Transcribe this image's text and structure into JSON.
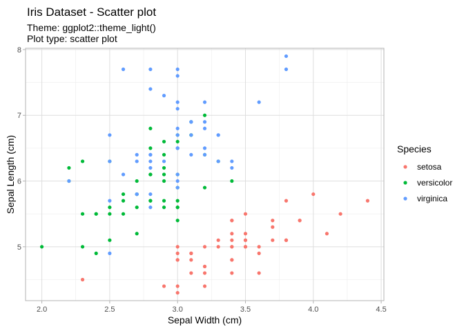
{
  "chart_data": {
    "type": "scatter",
    "title": "Iris Dataset - Scatter plot",
    "subtitle": [
      "Theme: ggplot2::theme_light()",
      "Plot type: scatter plot"
    ],
    "xlabel": "Sepal Width (cm)",
    "ylabel": "Sepal Length (cm)",
    "xlim": [
      1.88,
      4.52
    ],
    "ylim": [
      4.18,
      8.02
    ],
    "xticks": [
      2.0,
      2.5,
      3.0,
      3.5,
      4.0,
      4.5
    ],
    "xtick_labels": [
      "2.0",
      "2.5",
      "3.0",
      "3.5",
      "4.0",
      "4.5"
    ],
    "yticks": [
      5,
      6,
      7,
      8
    ],
    "ytick_labels": [
      "5",
      "6",
      "7",
      "8"
    ],
    "grid": true,
    "legend": {
      "title": "Species",
      "position": "right"
    },
    "series": [
      {
        "name": "setosa",
        "color": "#F8766D",
        "points": [
          [
            3.5,
            5.1
          ],
          [
            3.0,
            4.9
          ],
          [
            3.2,
            4.7
          ],
          [
            3.1,
            4.6
          ],
          [
            3.6,
            5.0
          ],
          [
            3.9,
            5.4
          ],
          [
            3.4,
            4.6
          ],
          [
            3.4,
            5.0
          ],
          [
            2.9,
            4.4
          ],
          [
            3.1,
            4.9
          ],
          [
            3.7,
            5.4
          ],
          [
            3.4,
            4.8
          ],
          [
            3.0,
            4.8
          ],
          [
            3.0,
            4.3
          ],
          [
            4.0,
            5.8
          ],
          [
            4.4,
            5.7
          ],
          [
            3.9,
            5.4
          ],
          [
            3.5,
            5.1
          ],
          [
            3.8,
            5.7
          ],
          [
            3.8,
            5.1
          ],
          [
            3.4,
            5.4
          ],
          [
            3.7,
            5.1
          ],
          [
            3.6,
            4.6
          ],
          [
            3.3,
            5.1
          ],
          [
            3.4,
            4.8
          ],
          [
            3.0,
            5.0
          ],
          [
            3.4,
            5.0
          ],
          [
            3.5,
            5.2
          ],
          [
            3.4,
            5.2
          ],
          [
            3.2,
            4.7
          ],
          [
            3.1,
            4.8
          ],
          [
            3.4,
            5.4
          ],
          [
            4.1,
            5.2
          ],
          [
            4.2,
            5.5
          ],
          [
            3.1,
            4.9
          ],
          [
            3.2,
            5.0
          ],
          [
            3.5,
            5.5
          ],
          [
            3.6,
            4.9
          ],
          [
            3.0,
            4.4
          ],
          [
            3.4,
            5.1
          ],
          [
            3.5,
            5.0
          ],
          [
            2.3,
            4.5
          ],
          [
            3.2,
            4.4
          ],
          [
            3.5,
            5.0
          ],
          [
            3.8,
            5.1
          ],
          [
            3.0,
            4.8
          ],
          [
            3.8,
            5.1
          ],
          [
            3.2,
            4.6
          ],
          [
            3.7,
            5.3
          ],
          [
            3.3,
            5.0
          ]
        ]
      },
      {
        "name": "versicolor",
        "color": "#00BA38",
        "points": [
          [
            3.2,
            7.0
          ],
          [
            3.2,
            6.4
          ],
          [
            3.1,
            6.9
          ],
          [
            2.3,
            5.5
          ],
          [
            2.8,
            6.5
          ],
          [
            2.8,
            5.7
          ],
          [
            3.3,
            6.3
          ],
          [
            2.4,
            4.9
          ],
          [
            2.9,
            6.6
          ],
          [
            2.7,
            5.2
          ],
          [
            2.0,
            5.0
          ],
          [
            3.0,
            5.9
          ],
          [
            2.2,
            6.0
          ],
          [
            2.9,
            6.1
          ],
          [
            2.9,
            5.6
          ],
          [
            3.1,
            6.7
          ],
          [
            3.0,
            5.6
          ],
          [
            2.7,
            5.8
          ],
          [
            2.2,
            6.2
          ],
          [
            2.5,
            5.6
          ],
          [
            3.2,
            5.9
          ],
          [
            2.8,
            6.1
          ],
          [
            2.5,
            6.3
          ],
          [
            2.8,
            6.1
          ],
          [
            2.9,
            6.4
          ],
          [
            3.0,
            6.6
          ],
          [
            2.8,
            6.8
          ],
          [
            3.0,
            6.7
          ],
          [
            2.9,
            6.0
          ],
          [
            2.6,
            5.7
          ],
          [
            2.4,
            5.5
          ],
          [
            2.4,
            5.5
          ],
          [
            2.7,
            5.8
          ],
          [
            2.7,
            6.0
          ],
          [
            3.0,
            5.4
          ],
          [
            3.4,
            6.0
          ],
          [
            3.1,
            6.7
          ],
          [
            2.3,
            6.3
          ],
          [
            3.0,
            5.6
          ],
          [
            2.5,
            5.5
          ],
          [
            2.6,
            5.5
          ],
          [
            3.0,
            6.1
          ],
          [
            2.6,
            5.8
          ],
          [
            2.3,
            5.0
          ],
          [
            2.7,
            5.6
          ],
          [
            3.0,
            5.7
          ],
          [
            2.9,
            5.7
          ],
          [
            2.9,
            6.2
          ],
          [
            2.5,
            5.1
          ],
          [
            2.8,
            5.7
          ]
        ]
      },
      {
        "name": "virginica",
        "color": "#619CFF",
        "points": [
          [
            3.3,
            6.3
          ],
          [
            2.7,
            5.8
          ],
          [
            3.0,
            7.1
          ],
          [
            2.9,
            6.3
          ],
          [
            3.0,
            6.5
          ],
          [
            3.0,
            7.6
          ],
          [
            2.5,
            4.9
          ],
          [
            2.9,
            7.3
          ],
          [
            2.5,
            6.7
          ],
          [
            3.6,
            7.2
          ],
          [
            3.2,
            6.5
          ],
          [
            2.7,
            6.4
          ],
          [
            3.0,
            6.8
          ],
          [
            2.5,
            5.7
          ],
          [
            2.8,
            5.8
          ],
          [
            3.2,
            6.4
          ],
          [
            3.0,
            6.5
          ],
          [
            3.8,
            7.7
          ],
          [
            2.6,
            7.7
          ],
          [
            2.2,
            6.0
          ],
          [
            3.2,
            6.9
          ],
          [
            2.8,
            5.6
          ],
          [
            2.8,
            7.7
          ],
          [
            2.7,
            6.3
          ],
          [
            3.3,
            6.7
          ],
          [
            3.2,
            7.2
          ],
          [
            2.8,
            6.2
          ],
          [
            3.0,
            6.1
          ],
          [
            2.8,
            6.4
          ],
          [
            3.0,
            7.2
          ],
          [
            2.8,
            7.4
          ],
          [
            3.8,
            7.9
          ],
          [
            2.8,
            6.4
          ],
          [
            2.8,
            6.3
          ],
          [
            2.6,
            6.1
          ],
          [
            3.0,
            7.7
          ],
          [
            3.4,
            6.3
          ],
          [
            3.1,
            6.4
          ],
          [
            3.0,
            6.0
          ],
          [
            3.1,
            6.9
          ],
          [
            3.1,
            6.7
          ],
          [
            3.1,
            6.9
          ],
          [
            2.7,
            5.8
          ],
          [
            3.2,
            6.8
          ],
          [
            3.3,
            6.7
          ],
          [
            3.0,
            6.7
          ],
          [
            2.5,
            6.3
          ],
          [
            3.0,
            6.5
          ],
          [
            3.4,
            6.2
          ],
          [
            3.0,
            5.9
          ]
        ]
      }
    ]
  }
}
